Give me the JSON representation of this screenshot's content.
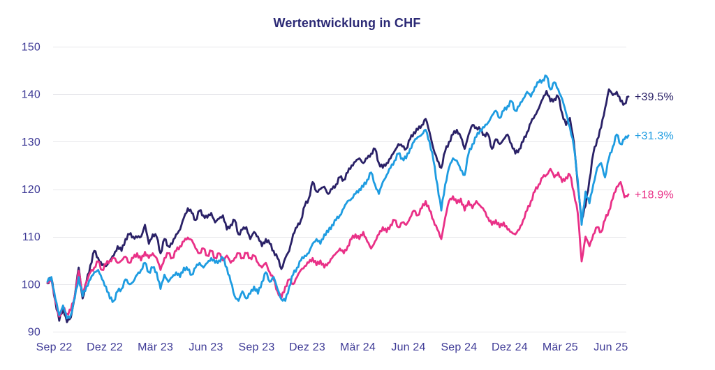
{
  "title": "Wertentwicklung in CHF",
  "colors": {
    "background": "#FFFFFF",
    "grid": "#E6E6EA",
    "axis_text": "#3E3A96",
    "title_text": "#2B2975",
    "navy": "#2A2167",
    "blue": "#1E9CE1",
    "pink": "#E93087"
  },
  "chart_data": {
    "type": "line",
    "title": "Wertentwicklung in CHF",
    "xlabel": "",
    "ylabel": "",
    "x_tick_labels": [
      "Sep 22",
      "Dez 22",
      "Mär 23",
      "Jun 23",
      "Sep 23",
      "Dez 23",
      "Mär 24",
      "Jun 24",
      "Sep 24",
      "Dez 24",
      "Mär 25",
      "Jun 25"
    ],
    "y_ticks": [
      90,
      100,
      110,
      120,
      130,
      140,
      150
    ],
    "y_tick_labels": [
      "90",
      "100",
      "110",
      "120",
      "130",
      "140",
      "150"
    ],
    "ylim": [
      90,
      150
    ],
    "grid": "horizontal-only",
    "legend_position": "end-of-line-labels-right",
    "start_value": 100,
    "sampling": "approx. weekly points, Aug 2022 - Jul 2025",
    "series": [
      {
        "end_label": "+39.5%",
        "color": "#2A2167",
        "values": [
          100.2,
          101.3,
          96.5,
          92.3,
          95.0,
          92.0,
          93.0,
          97.5,
          103.5,
          97.0,
          100.5,
          104.0,
          107.0,
          105.5,
          104.0,
          103.8,
          105.0,
          106.0,
          108.0,
          107.0,
          109.5,
          110.5,
          110.0,
          109.8,
          110.0,
          112.5,
          108.5,
          110.5,
          110.0,
          106.5,
          109.5,
          108.0,
          108.5,
          110.5,
          111.5,
          114.0,
          116.0,
          115.0,
          113.5,
          115.5,
          114.5,
          114.0,
          115.0,
          113.0,
          113.8,
          114.5,
          111.5,
          112.5,
          113.5,
          110.5,
          111.5,
          112.0,
          109.5,
          111.0,
          110.0,
          108.0,
          109.5,
          108.5,
          107.0,
          105.5,
          103.2,
          105.5,
          107.0,
          110.5,
          112.0,
          113.5,
          116.5,
          118.0,
          121.5,
          119.5,
          120.0,
          120.5,
          119.0,
          120.0,
          121.0,
          122.5,
          122.0,
          123.5,
          125.0,
          125.8,
          126.5,
          125.5,
          126.5,
          127.5,
          128.5,
          125.5,
          124.5,
          125.5,
          126.5,
          128.0,
          129.5,
          129.0,
          128.5,
          130.5,
          132.0,
          132.5,
          133.5,
          134.8,
          132.0,
          128.5,
          126.0,
          124.5,
          128.0,
          130.0,
          131.5,
          132.5,
          131.0,
          128.5,
          131.5,
          133.5,
          133.0,
          132.5,
          131.5,
          131.5,
          128.5,
          130.5,
          129.5,
          130.5,
          131.5,
          129.5,
          127.5,
          128.5,
          130.0,
          132.0,
          134.0,
          135.5,
          137.0,
          139.0,
          140.7,
          138.5,
          139.0,
          139.5,
          136.0,
          133.5,
          135.0,
          130.0,
          121.0,
          113.5,
          116.5,
          122.0,
          127.5,
          130.5,
          133.0,
          137.0,
          141.0,
          139.8,
          140.5,
          138.5,
          138.0,
          139.5
        ]
      },
      {
        "end_label": "+31.3%",
        "color": "#1E9CE1",
        "values": [
          100.5,
          101.5,
          97.0,
          93.5,
          95.5,
          92.8,
          93.5,
          97.0,
          101.5,
          97.5,
          99.5,
          101.0,
          102.5,
          103.0,
          101.0,
          99.5,
          97.0,
          96.5,
          98.5,
          99.0,
          101.0,
          100.0,
          100.5,
          102.0,
          103.0,
          104.5,
          102.5,
          103.5,
          102.5,
          99.0,
          102.0,
          100.5,
          101.5,
          102.5,
          101.5,
          103.5,
          103.0,
          102.0,
          103.5,
          104.5,
          103.5,
          104.5,
          105.5,
          104.5,
          105.0,
          105.5,
          103.5,
          100.5,
          97.5,
          96.5,
          98.5,
          97.0,
          98.0,
          99.5,
          98.0,
          100.5,
          102.5,
          100.5,
          101.5,
          99.0,
          96.8,
          96.5,
          99.5,
          102.0,
          103.5,
          105.0,
          106.0,
          106.5,
          108.5,
          109.5,
          108.5,
          110.5,
          111.0,
          112.5,
          113.5,
          114.5,
          116.0,
          117.5,
          118.0,
          119.0,
          120.0,
          120.5,
          122.0,
          123.5,
          121.0,
          119.0,
          121.5,
          123.0,
          124.5,
          126.0,
          127.5,
          126.5,
          126.5,
          128.5,
          130.0,
          131.0,
          131.5,
          132.5,
          130.0,
          126.0,
          121.0,
          115.5,
          121.0,
          124.5,
          126.5,
          126.0,
          124.0,
          123.0,
          127.5,
          129.5,
          131.0,
          132.5,
          133.0,
          134.0,
          135.5,
          136.5,
          135.0,
          136.5,
          137.5,
          138.5,
          136.5,
          137.5,
          139.0,
          140.5,
          139.5,
          141.5,
          142.5,
          143.0,
          143.8,
          141.0,
          142.5,
          141.0,
          139.0,
          136.0,
          133.0,
          129.0,
          122.0,
          112.5,
          119.5,
          117.0,
          121.0,
          124.5,
          125.5,
          122.5,
          126.5,
          129.0,
          131.5,
          129.5,
          130.5,
          131.3
        ]
      },
      {
        "end_label": "+18.9%",
        "color": "#E93087",
        "values": [
          100.3,
          101.0,
          96.5,
          93.2,
          95.0,
          93.8,
          94.5,
          97.5,
          102.8,
          98.0,
          100.5,
          102.5,
          103.5,
          104.8,
          103.0,
          104.2,
          105.0,
          105.5,
          104.5,
          105.0,
          105.8,
          104.5,
          105.5,
          106.5,
          105.0,
          106.8,
          105.5,
          106.5,
          105.5,
          103.0,
          105.5,
          106.5,
          105.5,
          107.0,
          108.0,
          109.0,
          109.8,
          109.3,
          107.5,
          106.5,
          107.5,
          106.0,
          107.0,
          105.5,
          106.5,
          105.0,
          106.0,
          104.5,
          105.5,
          106.5,
          105.5,
          106.5,
          105.5,
          106.0,
          104.5,
          103.5,
          104.5,
          102.5,
          101.0,
          98.5,
          97.0,
          99.5,
          101.0,
          100.0,
          101.5,
          103.0,
          103.8,
          104.5,
          105.5,
          104.0,
          105.0,
          103.5,
          104.5,
          105.5,
          106.5,
          107.5,
          106.5,
          108.0,
          109.5,
          110.5,
          109.5,
          111.0,
          109.0,
          107.5,
          109.0,
          110.5,
          112.0,
          111.0,
          112.5,
          113.5,
          112.0,
          113.0,
          112.5,
          114.0,
          115.5,
          114.5,
          116.0,
          117.5,
          115.5,
          113.5,
          111.5,
          109.5,
          114.0,
          117.5,
          118.5,
          117.0,
          118.0,
          115.5,
          117.5,
          116.0,
          117.5,
          116.5,
          115.5,
          114.0,
          112.5,
          113.5,
          112.0,
          113.0,
          111.5,
          111.0,
          110.5,
          111.5,
          113.5,
          115.5,
          117.5,
          119.5,
          121.0,
          122.5,
          123.0,
          124.3,
          122.5,
          123.5,
          121.5,
          122.5,
          123.0,
          119.5,
          115.0,
          104.8,
          110.0,
          108.0,
          110.5,
          112.0,
          111.0,
          113.5,
          115.5,
          118.0,
          120.5,
          121.5,
          118.3,
          118.9
        ]
      }
    ]
  }
}
